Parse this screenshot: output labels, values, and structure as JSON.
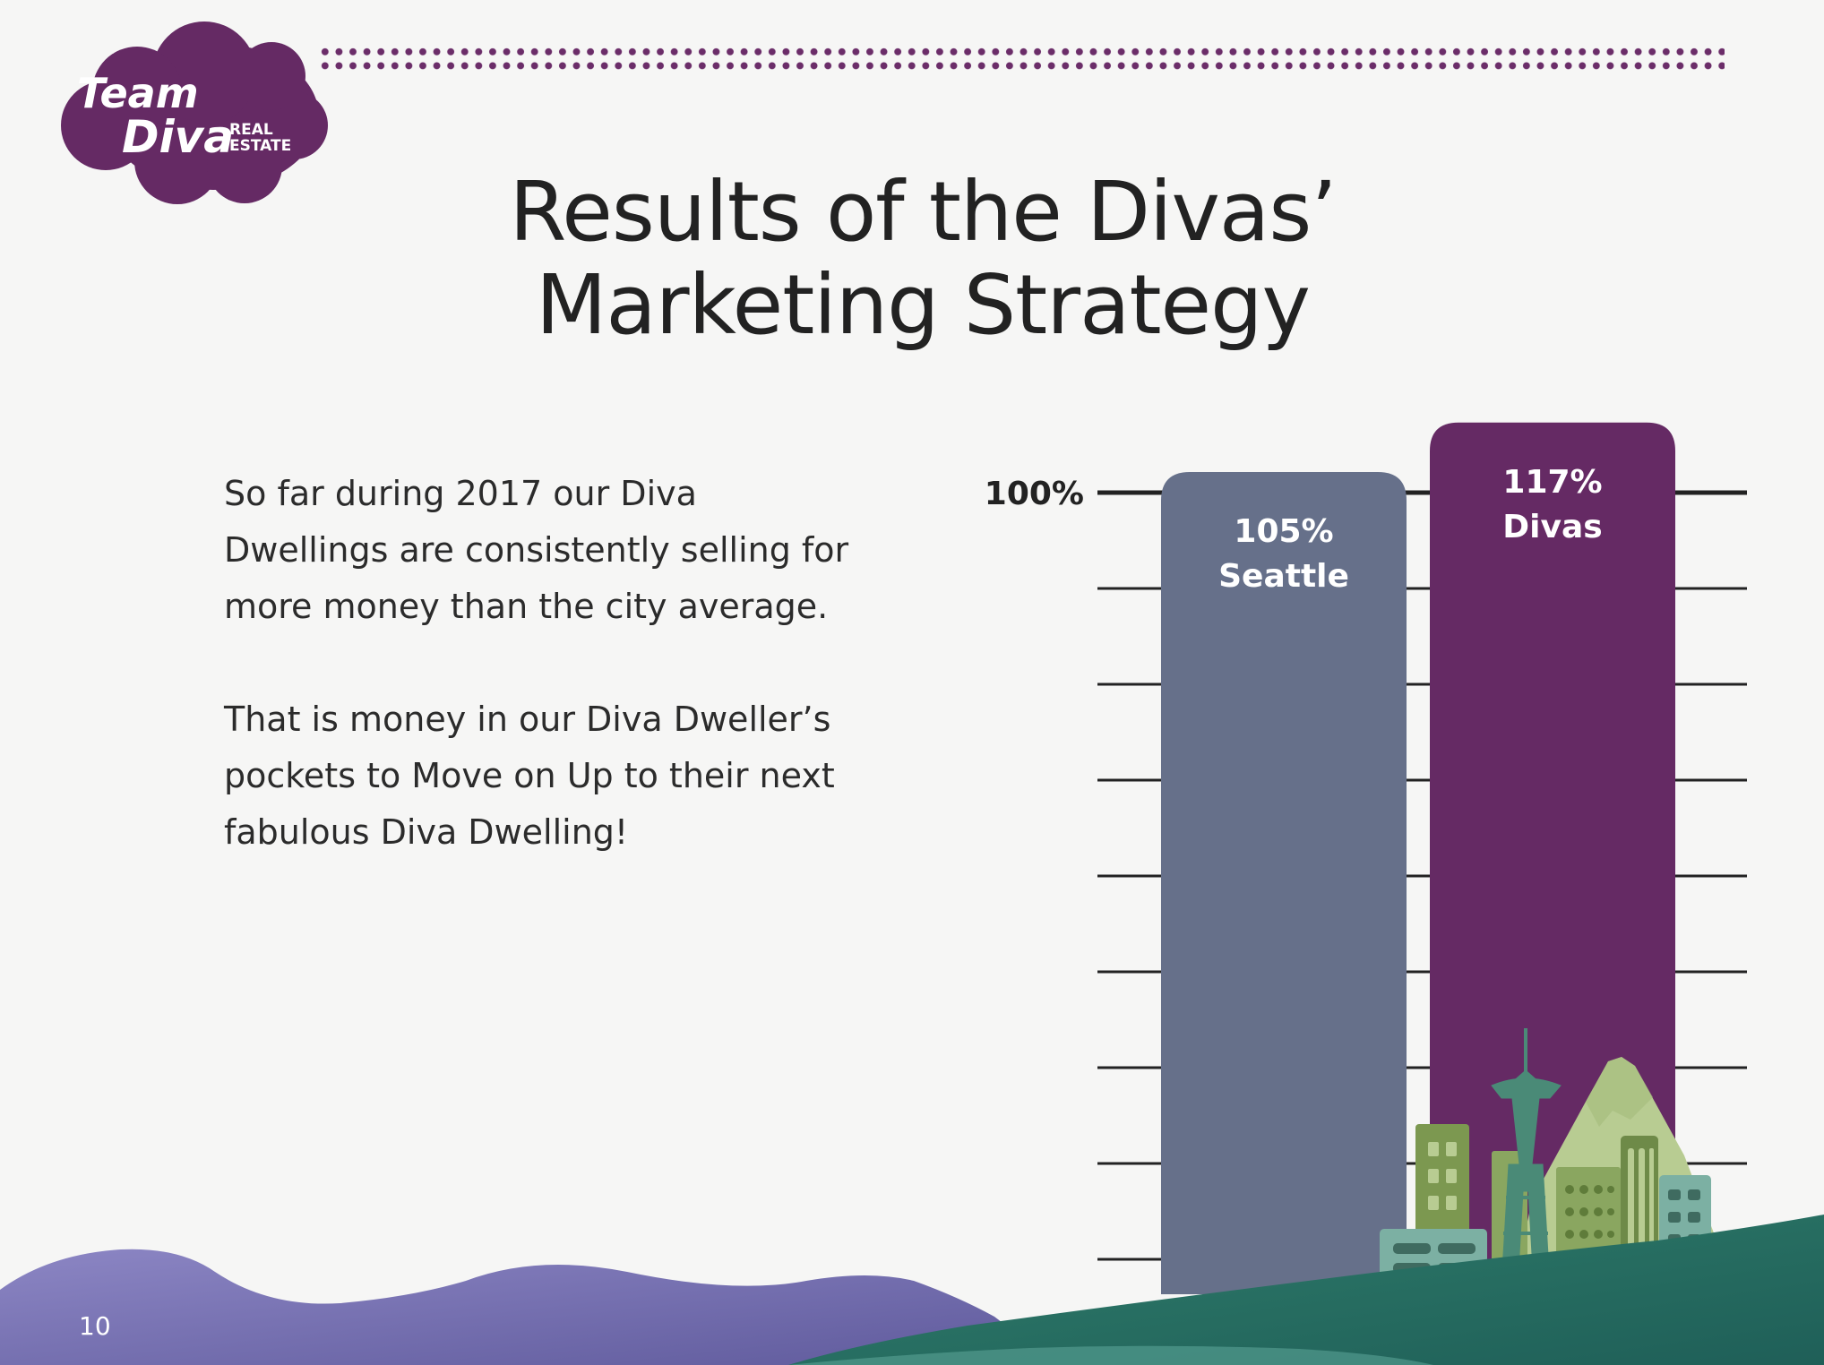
{
  "brand": {
    "logo_line1": "Team",
    "logo_line2": "Diva",
    "logo_tag_line1": "REAL",
    "logo_tag_line2": "ESTATE",
    "logo_color": "#652a64"
  },
  "title": {
    "line1": "Results of the Divas’",
    "line2": "Marketing Strategy"
  },
  "body": {
    "paragraph1": "So far during 2017 our Diva Dwellings are consistently selling for more money than the city average.",
    "paragraph2": "That is money in our Diva Dweller’s pockets to Move on Up to their next fabulous Diva Dwelling!"
  },
  "chart_data": {
    "type": "bar",
    "categories": [
      "Seattle",
      "Divas"
    ],
    "values": [
      105,
      117
    ],
    "value_labels": [
      "105%",
      "117%"
    ],
    "colors": [
      "#66708a",
      "#652a64"
    ],
    "reference_label": "100%",
    "title": "",
    "xlabel": "",
    "ylabel": "",
    "grid": true
  },
  "footer": {
    "page_number": "10"
  },
  "colors": {
    "background": "#f6f6f5",
    "accent_purple": "#652a64",
    "seattle_slate": "#66708a",
    "hill_teal": "#2f7a67",
    "hill_lavender": "#7e78b8"
  }
}
